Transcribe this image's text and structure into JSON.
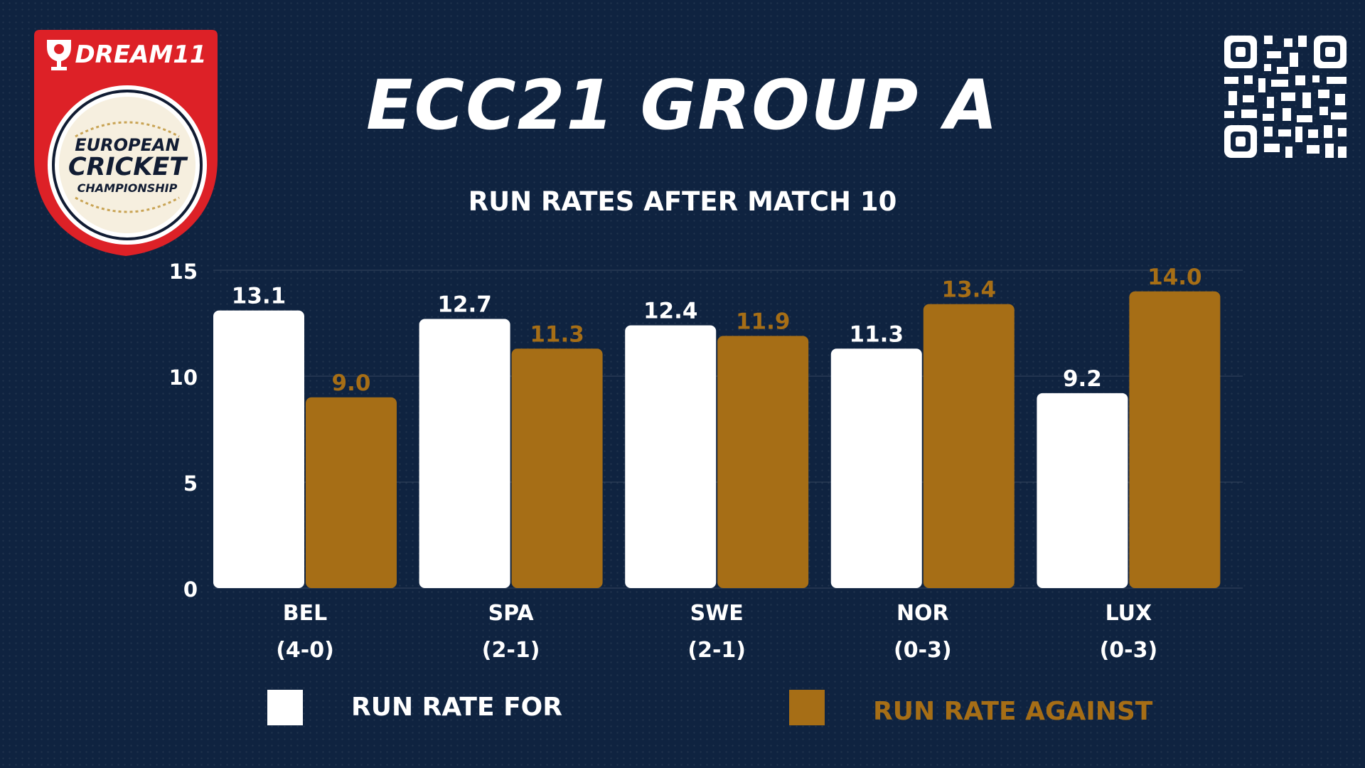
{
  "brand": {
    "sponsor_text": "DREAM11",
    "logo_lines": [
      "EUROPEAN",
      "CRICKET",
      "CHAMPIONSHIP"
    ]
  },
  "header": {
    "title": "ECC21 GROUP A",
    "subtitle": "RUN RATES AFTER MATCH 10"
  },
  "colors": {
    "background": "#0f2340",
    "for": "#ffffff",
    "against": "#a66e16",
    "logo_red": "#dd2127",
    "logo_gold": "#c9a455"
  },
  "icons": {
    "qr": "qr-code-icon"
  },
  "legend": {
    "for_label": "RUN RATE FOR",
    "against_label": "RUN RATE AGAINST"
  },
  "chart_data": {
    "type": "bar",
    "title": "RUN RATES AFTER MATCH 10",
    "categories": [
      "BEL",
      "SPA",
      "SWE",
      "NOR",
      "LUX"
    ],
    "category_sublabels": [
      "(4-0)",
      "(2-1)",
      "(2-1)",
      "(0-3)",
      "(0-3)"
    ],
    "series": [
      {
        "name": "RUN RATE FOR",
        "values": [
          13.1,
          12.7,
          12.4,
          11.3,
          9.2
        ],
        "color": "#ffffff"
      },
      {
        "name": "RUN RATE AGAINST",
        "values": [
          9.0,
          11.3,
          11.9,
          13.4,
          14.0
        ],
        "color": "#a66e16"
      }
    ],
    "ylim": [
      0,
      15
    ],
    "yticks": [
      0,
      5,
      10,
      15
    ],
    "grid": true,
    "legend_position": "bottom"
  }
}
